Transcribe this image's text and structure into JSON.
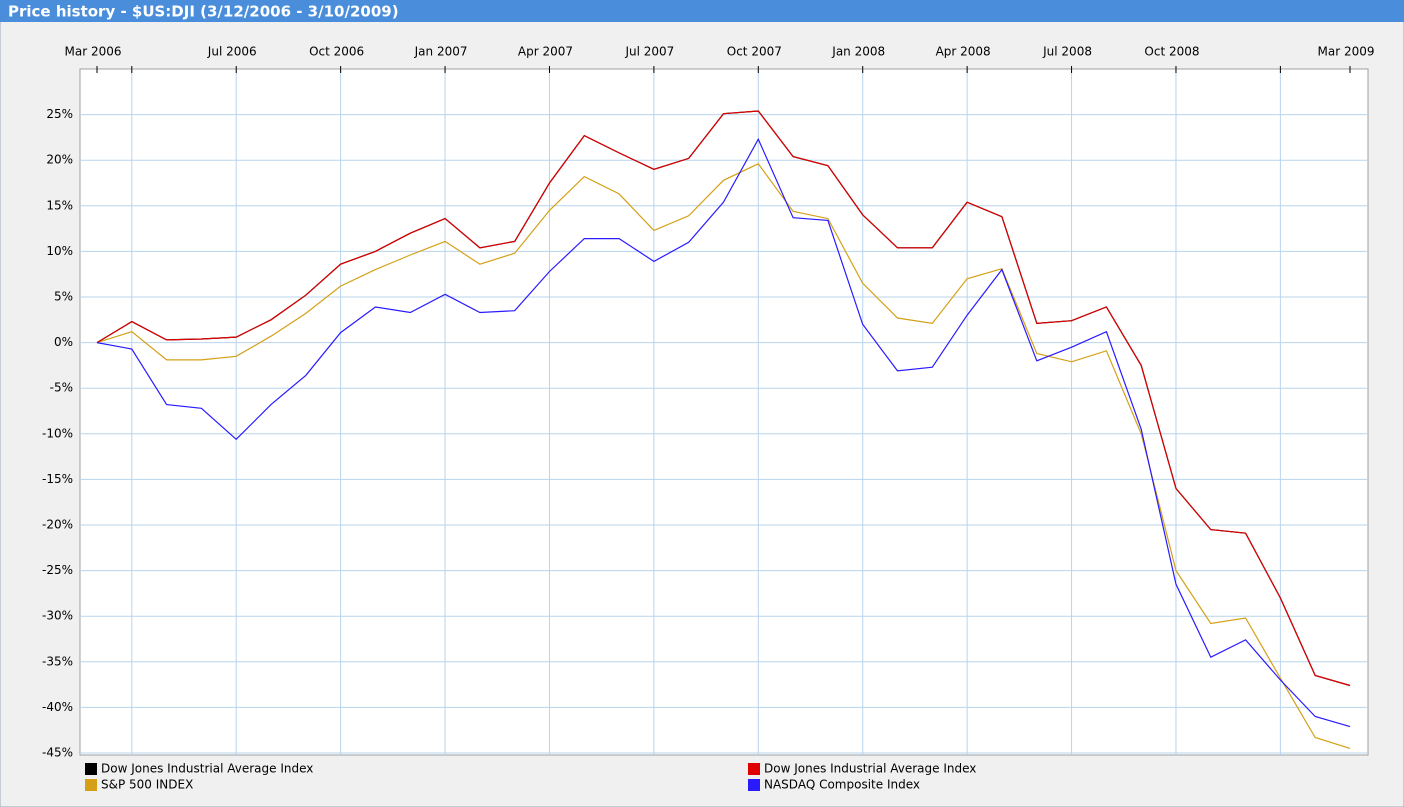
{
  "chart_data": {
    "type": "line",
    "title": "Price history - $US:DJI (3/12/2006 - 3/10/2009)",
    "x": [
      "2006-03",
      "2006-04",
      "2006-05",
      "2006-06",
      "2006-07",
      "2006-08",
      "2006-09",
      "2006-10",
      "2006-11",
      "2006-12",
      "2007-01",
      "2007-02",
      "2007-03",
      "2007-04",
      "2007-05",
      "2007-06",
      "2007-07",
      "2007-08",
      "2007-09",
      "2007-10",
      "2007-11",
      "2007-12",
      "2008-01",
      "2008-02",
      "2008-03",
      "2008-04",
      "2008-05",
      "2008-06",
      "2008-07",
      "2008-08",
      "2008-09",
      "2008-10",
      "2008-11",
      "2008-12",
      "2009-01",
      "2009-02",
      "2009-03"
    ],
    "xlim": [
      "2006-03",
      "2009-03"
    ],
    "xticks": [
      {
        "value": "2006-03",
        "label": "Mar 2006"
      },
      {
        "value": "2006-04",
        "label": null
      },
      {
        "value": "2006-07",
        "label": "Jul 2006"
      },
      {
        "value": "2006-10",
        "label": "Oct 2006"
      },
      {
        "value": "2007-01",
        "label": "Jan 2007"
      },
      {
        "value": "2007-04",
        "label": "Apr 2007"
      },
      {
        "value": "2007-07",
        "label": "Jul 2007"
      },
      {
        "value": "2007-10",
        "label": "Oct 2007"
      },
      {
        "value": "2008-01",
        "label": "Jan 2008"
      },
      {
        "value": "2008-04",
        "label": "Apr 2008"
      },
      {
        "value": "2008-07",
        "label": "Jul 2008"
      },
      {
        "value": "2008-10",
        "label": "Oct 2008"
      },
      {
        "value": "2009-01",
        "label": null
      },
      {
        "value": "2009-03",
        "label": "Mar 2009"
      }
    ],
    "ylim": [
      -45,
      30
    ],
    "yticks": [
      {
        "value": 25,
        "label": "25%"
      },
      {
        "value": 20,
        "label": "20%"
      },
      {
        "value": 15,
        "label": "15%"
      },
      {
        "value": 10,
        "label": "10%"
      },
      {
        "value": 5,
        "label": "5%"
      },
      {
        "value": 0,
        "label": "0%"
      },
      {
        "value": -5,
        "label": "-5%"
      },
      {
        "value": -10,
        "label": "-10%"
      },
      {
        "value": -15,
        "label": "-15%"
      },
      {
        "value": -20,
        "label": "-20%"
      },
      {
        "value": -25,
        "label": "-25%"
      },
      {
        "value": -30,
        "label": "-30%"
      },
      {
        "value": -35,
        "label": "-35%"
      },
      {
        "value": -40,
        "label": "-40%"
      },
      {
        "value": -45,
        "label": "-45%"
      }
    ],
    "grid": true,
    "series": [
      {
        "name": "Dow Jones Industrial Average Index",
        "color": "#000000",
        "values": [
          0,
          2.3,
          0.3,
          0.4,
          0.6,
          2.5,
          5.2,
          8.6,
          10.0,
          12.0,
          13.6,
          10.4,
          11.1,
          17.5,
          22.7,
          20.8,
          19.0,
          20.2,
          25.1,
          25.4,
          20.4,
          19.4,
          14.0,
          10.4,
          10.4,
          15.4,
          13.8,
          2.1,
          2.4,
          3.9,
          -2.5,
          -16.0,
          -20.5,
          -20.9,
          -28.0,
          -36.5,
          -37.6
        ]
      },
      {
        "name": "S&P 500 INDEX",
        "color": "#d4a017",
        "values": [
          0,
          1.2,
          -1.9,
          -1.9,
          -1.5,
          0.7,
          3.2,
          6.2,
          8.0,
          9.6,
          11.1,
          8.6,
          9.8,
          14.5,
          18.2,
          16.3,
          12.3,
          13.9,
          17.8,
          19.6,
          14.4,
          13.6,
          6.5,
          2.7,
          2.1,
          7.0,
          8.1,
          -1.2,
          -2.1,
          -0.9,
          -10.0,
          -25.0,
          -30.8,
          -30.2,
          -36.8,
          -43.3,
          -44.5
        ]
      },
      {
        "name": "Dow Jones Industrial Average Index",
        "color": "#e00000",
        "values": [
          0,
          2.3,
          0.3,
          0.4,
          0.6,
          2.5,
          5.2,
          8.6,
          10.0,
          12.0,
          13.6,
          10.4,
          11.1,
          17.5,
          22.7,
          20.8,
          19.0,
          20.2,
          25.1,
          25.4,
          20.4,
          19.4,
          14.0,
          10.4,
          10.4,
          15.4,
          13.8,
          2.1,
          2.4,
          3.9,
          -2.5,
          -16.0,
          -20.5,
          -20.9,
          -28.0,
          -36.5,
          -37.6
        ]
      },
      {
        "name": "NASDAQ Composite Index",
        "color": "#2a1aff",
        "values": [
          0,
          -0.7,
          -6.8,
          -7.2,
          -10.6,
          -6.8,
          -3.6,
          1.1,
          3.9,
          3.3,
          5.3,
          3.3,
          3.5,
          7.8,
          11.4,
          11.4,
          8.9,
          11.0,
          15.4,
          22.3,
          13.7,
          13.4,
          2.0,
          -3.1,
          -2.7,
          3.0,
          8.0,
          -2.0,
          -0.5,
          1.2,
          -9.5,
          -26.5,
          -34.5,
          -32.6,
          -37.0,
          -41.0,
          -42.1
        ]
      }
    ]
  }
}
